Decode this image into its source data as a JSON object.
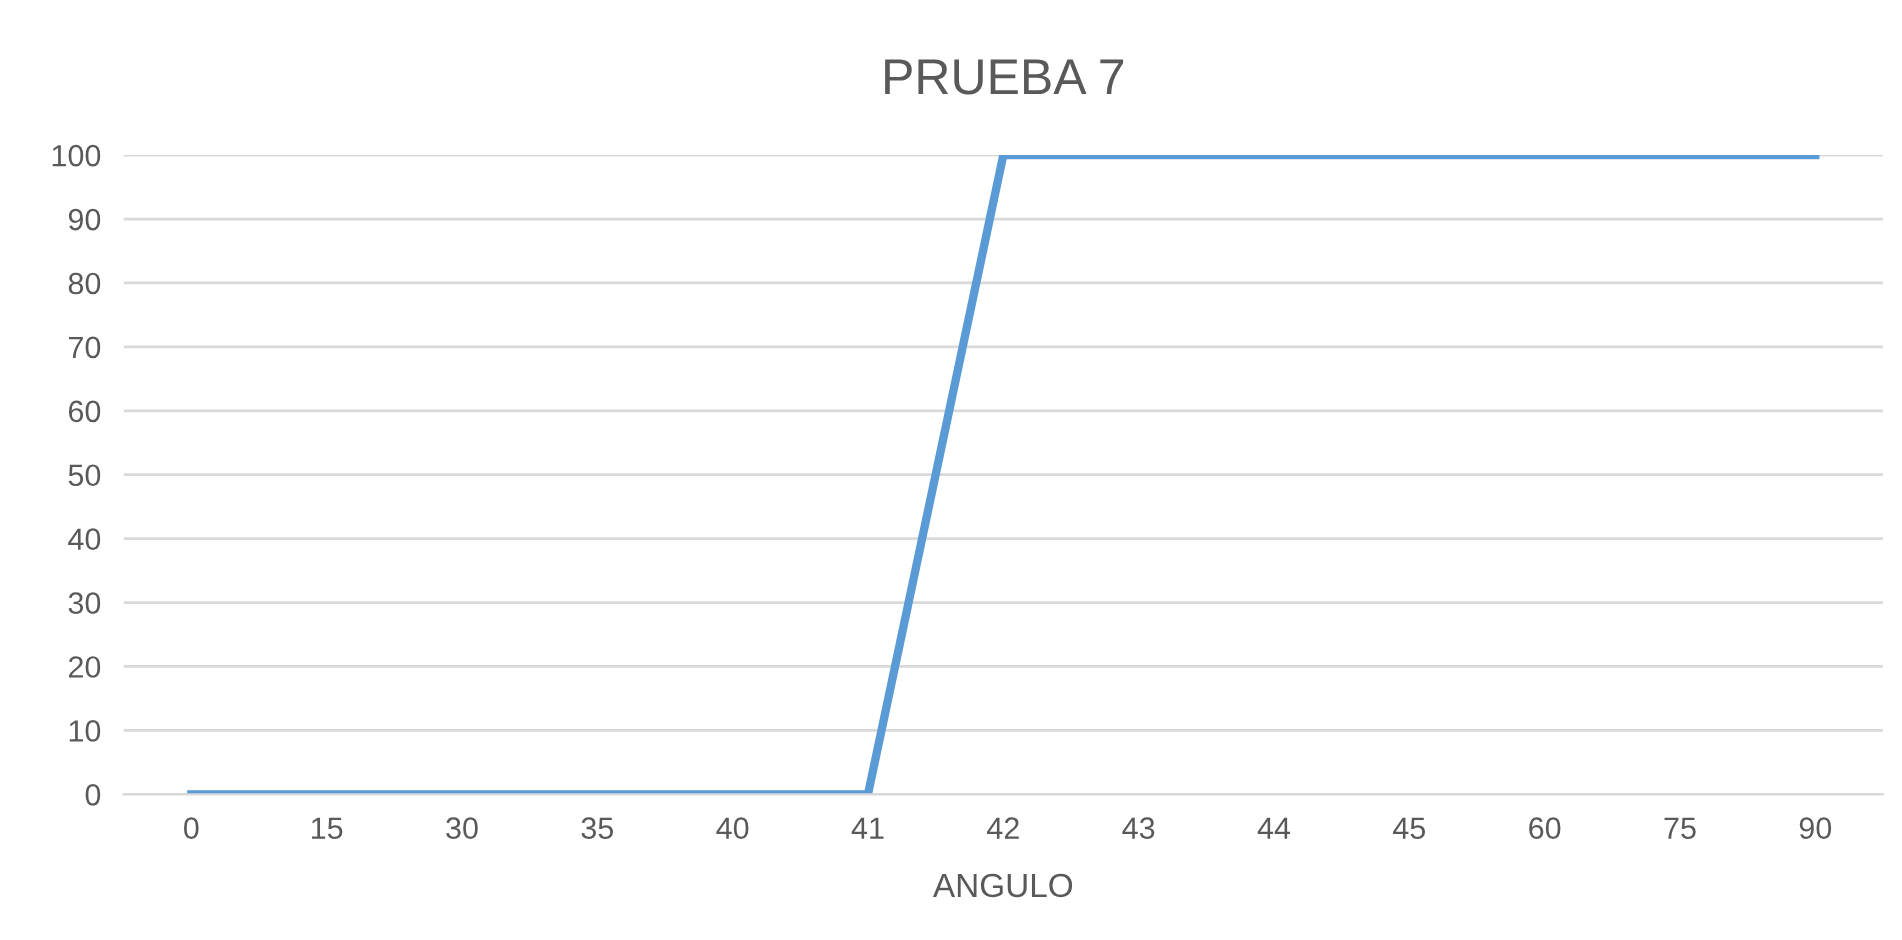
{
  "chart_data": {
    "type": "line",
    "title": "PRUEBA 7",
    "xlabel": "ANGULO",
    "categories": [
      "0",
      "15",
      "30",
      "35",
      "40",
      "41",
      "42",
      "43",
      "44",
      "45",
      "60",
      "75",
      "90"
    ],
    "series": [
      {
        "color": "#5b9bd5",
        "values": [
          0,
          0,
          0,
          0,
          0,
          0,
          100,
          100,
          100,
          100,
          100,
          100,
          100
        ]
      }
    ],
    "ylim": [
      0,
      100
    ],
    "yticks": [
      0,
      10,
      20,
      30,
      40,
      50,
      60,
      70,
      80,
      90,
      100
    ],
    "grid": "y",
    "legend": false,
    "marker": "none",
    "line_style": "solid"
  }
}
